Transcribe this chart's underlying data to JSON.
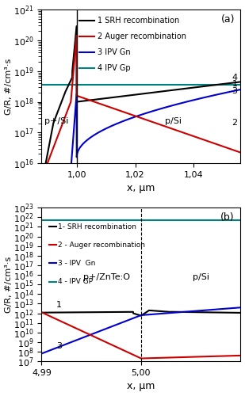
{
  "panel_a": {
    "title": "(a)",
    "xlabel": "x, μm",
    "ylabel": "G/R, #/cm³·s",
    "xlim": [
      0.988,
      1.056
    ],
    "ylim": [
      1e+16,
      1e+21
    ],
    "xticks": [
      1.0,
      1.02,
      1.04
    ],
    "xticklabels": [
      "1,00",
      "1,02",
      "1,04"
    ],
    "junction_x": 1.0,
    "label_p_plus": "p+/Si",
    "label_p": "p/Si",
    "legend_items": [
      {
        "num": "1",
        "label": "SRH recombination",
        "color": "#000000"
      },
      {
        "num": "2",
        "label": "Auger recombination",
        "color": "#cc0000"
      },
      {
        "num": "3",
        "label": "IPV Gn",
        "color": "#0000cc"
      },
      {
        "num": "4",
        "label": "IPV Gp",
        "color": "#008080"
      }
    ]
  },
  "panel_b": {
    "title": "(b)",
    "xlabel": "x, μm",
    "ylabel": "G/R, #/cm³·s",
    "xlim": [
      4.99,
      5.01
    ],
    "ylim": [
      10000000.0,
      1e+23
    ],
    "xticks": [
      4.99,
      5.0
    ],
    "xticklabels": [
      "4,99",
      "5,00"
    ],
    "junction_x": 5.0,
    "label_p_plus": "p+/ZnTe:O",
    "label_p": "p/Si",
    "legend_items": [
      {
        "num": "1-",
        "label": "SRH recombination",
        "color": "#000000"
      },
      {
        "num": "2 -",
        "label": "Auger recombination",
        "color": "#cc0000"
      },
      {
        "num": "3 -",
        "label": "IPV  Gn",
        "color": "#0000cc"
      },
      {
        "num": "4 -",
        "label": "IPV GP",
        "color": "#008080"
      }
    ]
  }
}
